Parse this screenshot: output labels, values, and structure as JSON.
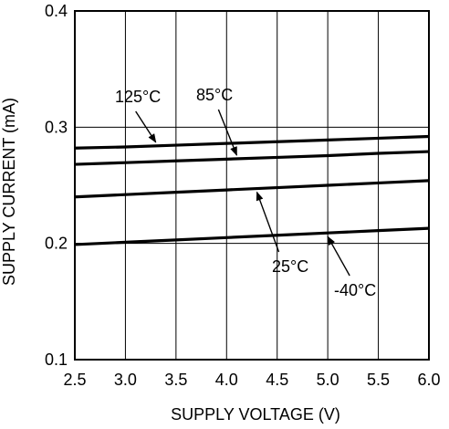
{
  "chart_data": {
    "type": "line",
    "title": "",
    "xlabel": "SUPPLY VOLTAGE (V)",
    "ylabel": "SUPPLY CURRENT (mA)",
    "xlim": [
      2.5,
      6.0
    ],
    "ylim": [
      0.1,
      0.4
    ],
    "grid": true,
    "x_ticks": [
      2.5,
      3.0,
      3.5,
      4.0,
      4.5,
      5.0,
      5.5,
      6.0
    ],
    "x_tick_labels": [
      "2.5",
      "3.0",
      "3.5",
      "4.0",
      "4.5",
      "5.0",
      "5.5",
      "6.0"
    ],
    "y_ticks": [
      0.1,
      0.2,
      0.3,
      0.4
    ],
    "y_tick_labels": [
      "0.1",
      "0.2",
      "0.3",
      "0.4"
    ],
    "series": [
      {
        "name": "125°C",
        "x": [
          2.5,
          3.0,
          3.5,
          4.0,
          4.5,
          5.0,
          5.5,
          6.0
        ],
        "y": [
          0.282,
          0.283,
          0.2845,
          0.286,
          0.2875,
          0.289,
          0.2905,
          0.292
        ]
      },
      {
        "name": "85°C",
        "x": [
          2.5,
          3.0,
          3.5,
          4.0,
          4.5,
          5.0,
          5.5,
          6.0
        ],
        "y": [
          0.268,
          0.2695,
          0.271,
          0.2725,
          0.274,
          0.2755,
          0.2775,
          0.279
        ]
      },
      {
        "name": "25°C",
        "x": [
          2.5,
          3.0,
          3.5,
          4.0,
          4.5,
          5.0,
          5.5,
          6.0
        ],
        "y": [
          0.24,
          0.242,
          0.244,
          0.246,
          0.248,
          0.25,
          0.252,
          0.254
        ]
      },
      {
        "name": "-40°C",
        "x": [
          2.5,
          3.0,
          3.5,
          4.0,
          4.5,
          5.0,
          5.5,
          6.0
        ],
        "y": [
          0.199,
          0.201,
          0.203,
          0.205,
          0.207,
          0.209,
          0.211,
          0.213
        ]
      }
    ],
    "annotations": [
      {
        "text": "125°C",
        "series": "125°C",
        "arrow_at_x": 3.3
      },
      {
        "text": "85°C",
        "series": "85°C",
        "arrow_at_x": 4.1
      },
      {
        "text": "25°C",
        "series": "25°C",
        "arrow_at_x": 4.3
      },
      {
        "text": "-40°C",
        "series": "-40°C",
        "arrow_at_x": 5.0
      }
    ]
  }
}
